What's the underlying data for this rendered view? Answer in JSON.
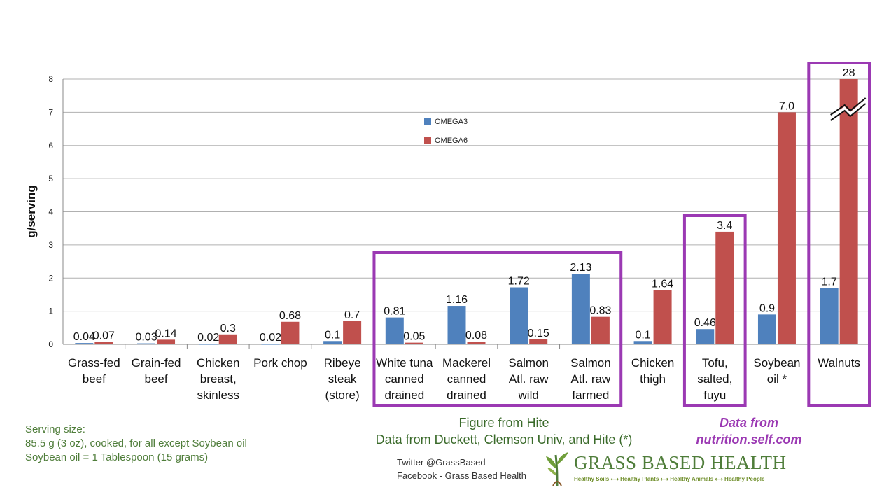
{
  "chart_data": {
    "type": "bar",
    "ylabel": "g/serving",
    "xlabel": "",
    "ylim": [
      0,
      8
    ],
    "yticks": [
      "0",
      "1",
      "2",
      "3",
      "4",
      "5",
      "6",
      "7",
      "8"
    ],
    "grid": true,
    "legend_position": "upper-center",
    "categories": [
      [
        "Grass-fed",
        "beef"
      ],
      [
        "Grain-fed",
        "beef"
      ],
      [
        "Chicken",
        "breast,",
        "skinless"
      ],
      [
        "Pork chop"
      ],
      [
        "Ribeye",
        "steak",
        "(store)"
      ],
      [
        "White tuna",
        "canned",
        "drained"
      ],
      [
        "Mackerel",
        "canned",
        "drained"
      ],
      [
        "Salmon",
        "Atl. raw",
        "wild"
      ],
      [
        "Salmon",
        "Atl. raw",
        "farmed"
      ],
      [
        "Chicken",
        "thigh"
      ],
      [
        "Tofu,",
        "salted,",
        "fuyu"
      ],
      [
        "Soybean",
        "oil *"
      ],
      [
        "Walnuts"
      ]
    ],
    "series": [
      {
        "name": "OMEGA3",
        "color": "#4f81bd",
        "values": [
          0.04,
          0.03,
          0.02,
          0.02,
          0.1,
          0.81,
          1.16,
          1.72,
          2.13,
          0.1,
          0.46,
          0.9,
          1.7
        ],
        "labels": [
          "0.04",
          "0.03",
          "0.02",
          "0.02",
          "0.1",
          "0.81",
          "1.16",
          "1.72",
          "2.13",
          "0.1",
          "0.46",
          "0.9",
          "1.7"
        ]
      },
      {
        "name": "OMEGA6",
        "color": "#c0504d",
        "values": [
          0.07,
          0.14,
          0.3,
          0.68,
          0.7,
          0.05,
          0.08,
          0.15,
          0.83,
          1.64,
          3.4,
          7.0,
          28
        ],
        "labels": [
          "0.07",
          "0.14",
          "0.3",
          "0.68",
          "0.7",
          "0.05",
          "0.08",
          "0.15",
          "0.83",
          "1.64",
          "3.4",
          "7.0",
          "28"
        ]
      }
    ],
    "axis_break": {
      "category": "Walnuts",
      "series": "OMEGA6",
      "actual_value": 28,
      "drawn_to": 8
    },
    "highlight_color": "#9b39b3"
  },
  "notes": {
    "serving_lines": [
      "Serving size:",
      "85.5 g (3 oz), cooked, for all except Soybean oil",
      "Soybean oil = 1 Tablespoon (15 grams)"
    ],
    "hite_line1": "Figure from Hite",
    "hite_line2": "Data from Duckett, Clemson Univ, and Hite (*)",
    "selfcom_line1": "Data from",
    "selfcom_line2": "nutrition.self.com",
    "twitter": "Twitter @GrassBased",
    "facebook": "Facebook - Grass Based Health"
  },
  "logo": {
    "title": "GRASS BASED HEALTH",
    "tagline": "Healthy Soils ⟷ Healthy Plants ⟷ Healthy Animals ⟷ Healthy People",
    "icon": "grass-sprout-icon"
  }
}
